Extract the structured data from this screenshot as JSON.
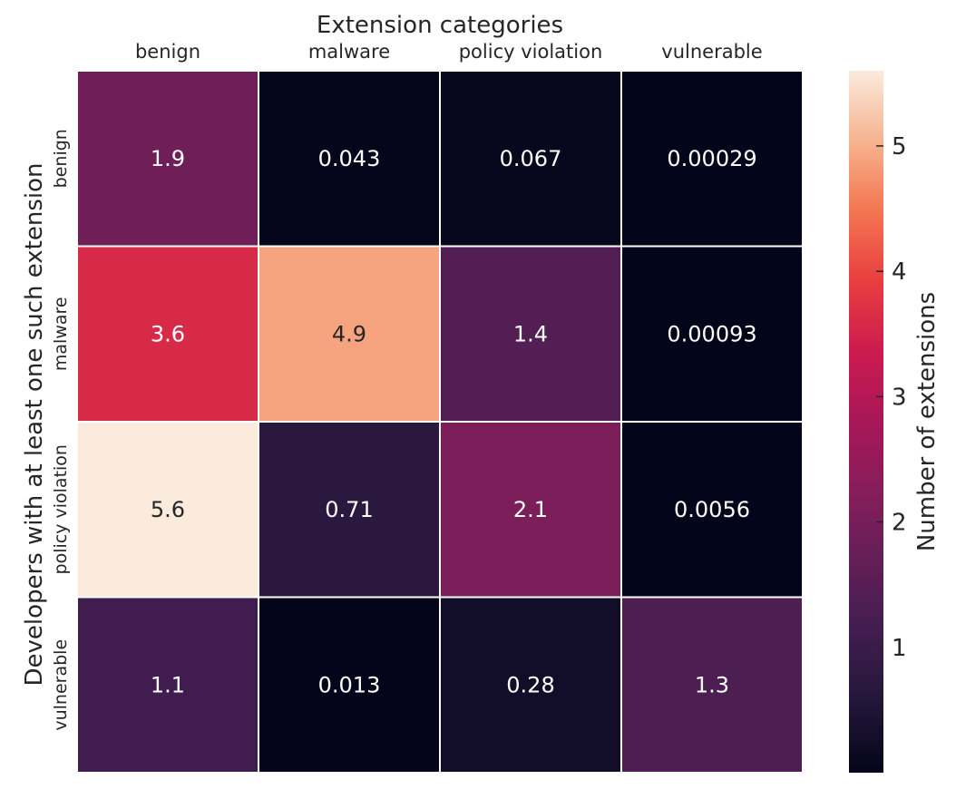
{
  "chart_data": {
    "type": "heatmap",
    "title": "Extension categories",
    "xlabel": "Extension categories",
    "ylabel": "Developers with at least one such extension",
    "x_categories": [
      "benign",
      "malware",
      "policy violation",
      "vulnerable"
    ],
    "y_categories": [
      "benign",
      "malware",
      "policy violation",
      "vulnerable"
    ],
    "values": [
      [
        1.9,
        0.043,
        0.067,
        0.00029
      ],
      [
        3.6,
        4.9,
        1.4,
        0.00093
      ],
      [
        5.6,
        0.71,
        2.1,
        0.0056
      ],
      [
        1.1,
        0.013,
        0.28,
        1.3
      ]
    ],
    "annotations": [
      [
        "1.9",
        "0.043",
        "0.067",
        "0.00029"
      ],
      [
        "3.6",
        "4.9",
        "1.4",
        "0.00093"
      ],
      [
        "5.6",
        "0.71",
        "2.1",
        "0.0056"
      ],
      [
        "1.1",
        "0.013",
        "0.28",
        "1.3"
      ]
    ],
    "colorbar": {
      "label": "Number of extensions",
      "ticks": [
        1,
        2,
        3,
        4,
        5
      ],
      "tick_labels": [
        "1",
        "2",
        "3",
        "4",
        "5"
      ],
      "vmin": 0.00029,
      "vmax": 5.6,
      "colormap": "rocket"
    },
    "cell_border_color": "#ffffff"
  }
}
